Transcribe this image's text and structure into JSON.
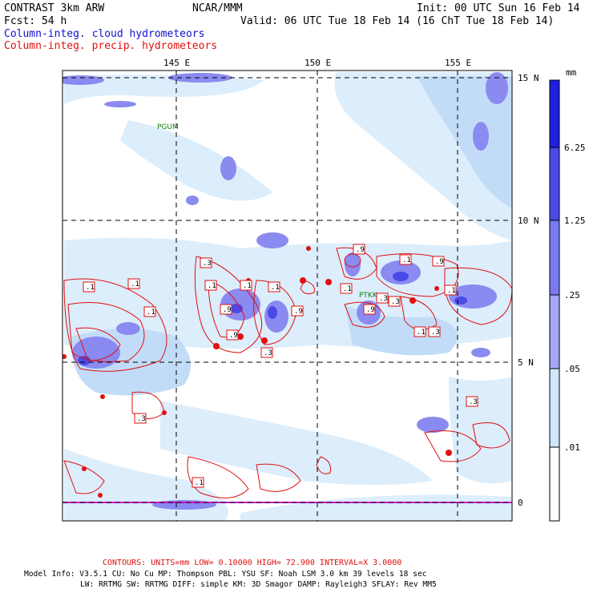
{
  "header": {
    "left_title": "CONTRAST  3km ARW",
    "center_title": "NCAR/MMM",
    "init": "Init: 00 UTC Sun 16 Feb 14",
    "fcst": "Fcst:   54 h",
    "valid": "Valid: 06 UTC Tue 18 Feb 14 (16 ChT Tue 18 Feb 14)",
    "legend_cloud": "Column-integ. cloud hydrometeors",
    "legend_precip": "Column-integ. precip. hydrometeors",
    "colors": {
      "cloud": "#1010d0",
      "precip": "#e01010"
    }
  },
  "map": {
    "lon_labels": [
      "145 E",
      "150 E",
      "155 E"
    ],
    "lat_labels": [
      "15 N",
      "10 N",
      "5 N",
      "0"
    ],
    "stations": [
      "PGUM",
      "PTKK"
    ],
    "contour_labels": [
      ".1",
      ".1",
      ".1",
      ".3",
      ".1",
      ".9",
      ".9",
      ".1",
      ".9",
      ".3",
      ".9",
      ".1",
      ".9",
      ".3",
      ".1",
      ".3",
      ".9",
      ".1",
      ".3",
      ".3",
      ".1",
      ".3",
      ".1",
      ".1"
    ]
  },
  "colorbar": {
    "unit": "mm",
    "ticks": [
      "6.25",
      "1.25",
      ".25",
      ".05",
      ".01"
    ],
    "colors": [
      "#2020e0",
      "#4a4ae8",
      "#7a7af0",
      "#a6a6f4",
      "#cfe6fb",
      "#e4f3fc",
      "#ffffff"
    ]
  },
  "footer": {
    "contours": "CONTOURS:  UNITS=mm  LOW= 0.10000      HIGH= 72.900      INTERVAL=X  3.0000",
    "model_line1": "Model Info: V3.5.1     CU: No Cu     MP: Thompson     PBL: YSU       SF: Noah LSM      3.0 km   39 levels    18 sec",
    "model_line2": "LW: RRTMG     SW: RRTMG   DIFF: simple KM: 3D Smagor DAMP: Rayleigh3   SFLAY: Rev MM5"
  }
}
